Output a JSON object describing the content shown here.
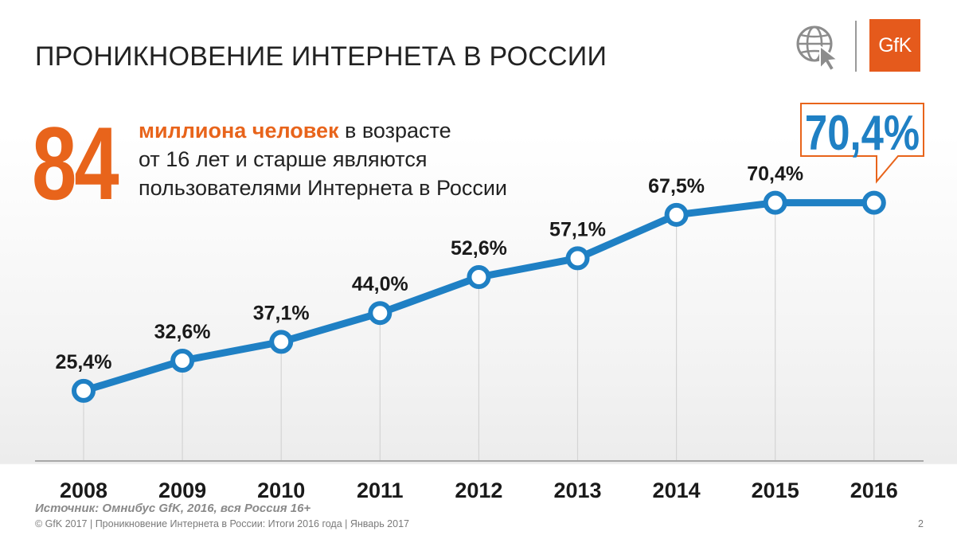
{
  "title": "ПРОНИКНОВЕНИЕ ИНТЕРНЕТА В РОССИИ",
  "logo": {
    "brand": "GfK",
    "icon": "globe-cursor-icon",
    "brand_color": "#e55a1c"
  },
  "highlight": {
    "number": "84",
    "emphasis": "миллиона человек",
    "text_1": " в возрасте",
    "text_2": "от 16 лет и старше являются",
    "text_3": "пользователями Интернета в России"
  },
  "callout": {
    "label": "70,4%",
    "color": "#1f80c4"
  },
  "chart_data": {
    "type": "line",
    "categories": [
      "2008",
      "2009",
      "2010",
      "2011",
      "2012",
      "2013",
      "2014",
      "2015",
      "2016"
    ],
    "values": [
      25.4,
      32.6,
      37.1,
      44.0,
      52.6,
      57.1,
      67.5,
      70.4,
      70.4
    ],
    "labels": [
      "25,4%",
      "32,6%",
      "37,1%",
      "44,0%",
      "52,6%",
      "57,1%",
      "67,5%",
      "70,4%",
      ""
    ],
    "title": "ПРОНИКНОВЕНИЕ ИНТЕРНЕТА В РОССИИ",
    "xlabel": "",
    "ylabel": "",
    "ylim": [
      0,
      80
    ],
    "line_color": "#1f80c4"
  },
  "source": "Источник: Омнибус GfK, 2016, вся Россия 16+",
  "footer": "© GfK 2017 | Проникновение Интернета в России: Итоги 2016 года | Январь 2017",
  "page_number": "2"
}
